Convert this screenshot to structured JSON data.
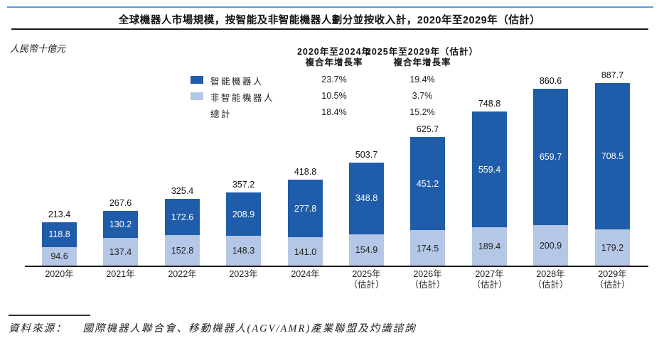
{
  "page": {
    "title": "全球機器人市場規模，按智能及非智能機器人劃分並按收入計，2020年至2029年（估計）",
    "unit_label": "人民幣十億元",
    "source_prefix": "資料來源：",
    "source_text": "國際機器人聯合會、移動機器人(AGV/AMR)產業聯盟及灼識諮詢"
  },
  "colors": {
    "smart": "#1F5CA9",
    "non_smart": "#B5C7E6",
    "top_rule": "#5B9BD5",
    "axis": "#1A1A1A"
  },
  "cagr_table": {
    "columns": [
      {
        "header_line1": "2020年至2024年",
        "header_line2": "複合年增長率"
      },
      {
        "header_line1": "2025年至2029年（估計）",
        "header_line2": "複合年增長率"
      }
    ],
    "rows": [
      {
        "label": "智能機器人",
        "col1": "23.7%",
        "col2": "19.4%"
      },
      {
        "label": "非智能機器人",
        "col1": "10.5%",
        "col2": "3.7%"
      },
      {
        "label": "總計",
        "col1": "18.4%",
        "col2": "15.2%"
      }
    ]
  },
  "chart_data": {
    "type": "bar",
    "stacked": true,
    "title": "全球機器人市場規模，按智能及非智能機器人劃分並按收入計，2020年至2029年（估計）",
    "ylabel": "人民幣十億元",
    "ylim": [
      0,
      900
    ],
    "grid": false,
    "legend_position": "upper-left",
    "categories": [
      "2020年",
      "2021年",
      "2022年",
      "2023年",
      "2024年",
      "2025年",
      "2026年",
      "2027年",
      "2028年",
      "2029年"
    ],
    "category_sublabels": [
      "",
      "",
      "",
      "",
      "",
      "（估計）",
      "（估計）",
      "（估計）",
      "（估計）",
      "（估計）"
    ],
    "series": [
      {
        "name": "智能機器人",
        "color": "#1F5CA9",
        "values": [
          118.8,
          130.2,
          172.6,
          208.9,
          277.8,
          348.8,
          451.2,
          559.4,
          659.7,
          708.5
        ],
        "labels": [
          "118.8",
          "130.2",
          "172.6",
          "208.9",
          "277.8",
          "348.8",
          "451.2",
          "559.4",
          "659.7",
          "708.5"
        ],
        "cagr_2020_2024": "23.7%",
        "cagr_2025_2029": "19.4%"
      },
      {
        "name": "非智能機器人",
        "color": "#B5C7E6",
        "values": [
          94.6,
          137.4,
          152.8,
          148.3,
          141.0,
          154.9,
          174.5,
          189.4,
          200.9,
          179.2
        ],
        "labels": [
          "94.6",
          "137.4",
          "152.8",
          "148.3",
          "141.0",
          "154.9",
          "174.5",
          "189.4",
          "200.9",
          "179.2"
        ],
        "cagr_2020_2024": "10.5%",
        "cagr_2025_2029": "3.7%"
      }
    ],
    "totals": [
      213.4,
      267.6,
      325.4,
      357.2,
      418.8,
      503.7,
      625.7,
      748.8,
      860.6,
      887.7
    ],
    "total_labels": [
      "213.4",
      "267.6",
      "325.4",
      "357.2",
      "418.8",
      "503.7",
      "625.7",
      "748.8",
      "860.6",
      "887.7"
    ],
    "total_cagr_2020_2024": "18.4%",
    "total_cagr_2025_2029": "15.2%"
  }
}
